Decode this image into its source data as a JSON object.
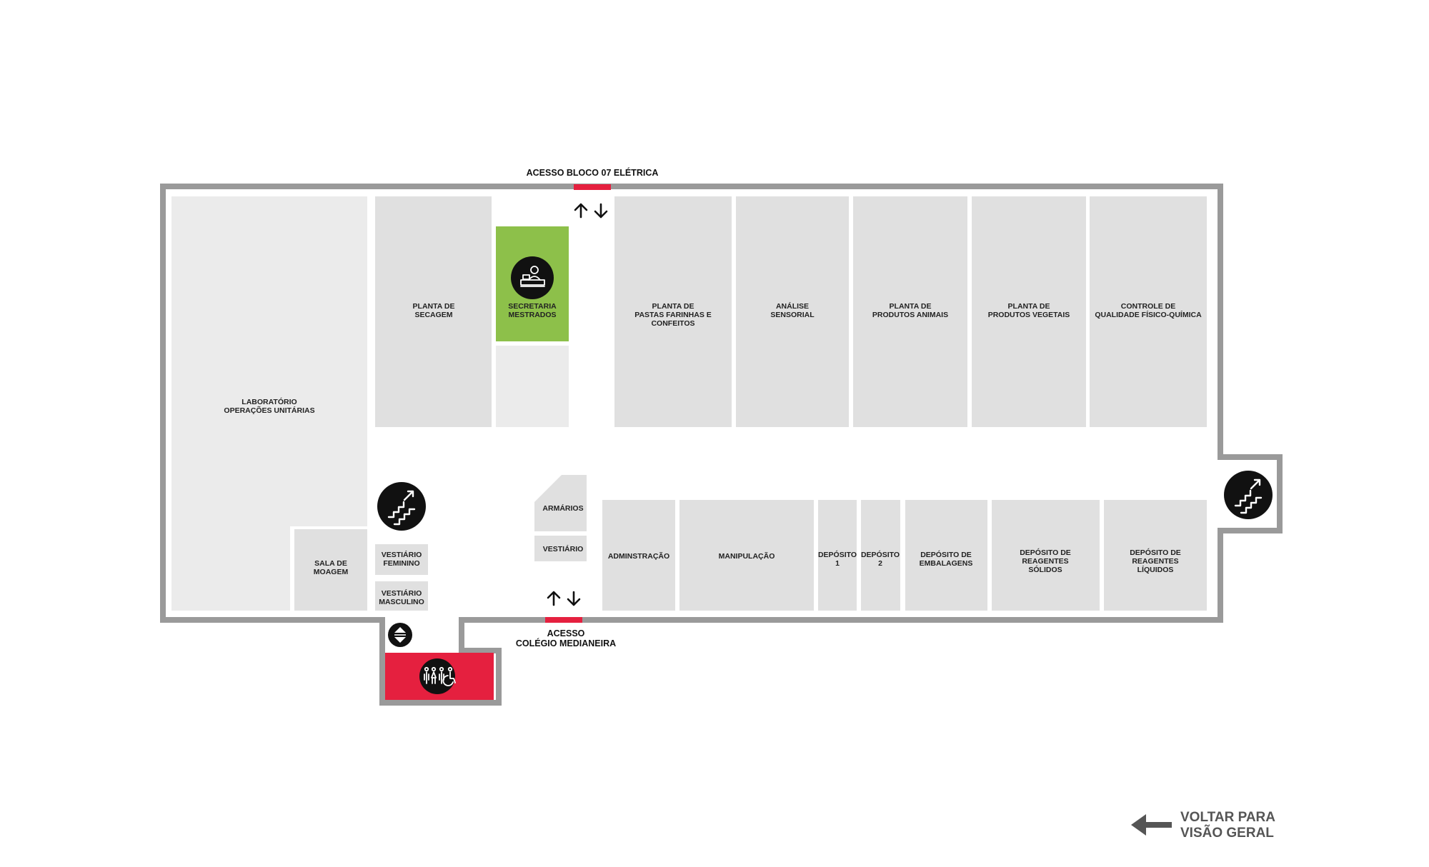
{
  "access": {
    "top_label": "ACESSO BLOCO 07 ELÉTRICA",
    "bottom_label_line1": "ACESSO",
    "bottom_label_line2": "COLÉGIO MEDIANEIRA"
  },
  "rooms": {
    "lab_line1": "LABORATÓRIO",
    "lab_line2": "OPERAÇÕES UNITÁRIAS",
    "secagem_line1": "PLANTA DE",
    "secagem_line2": "SECAGEM",
    "secretaria_line1": "SECRETARIA",
    "secretaria_line2": "MESTRADOS",
    "pastas_line1": "PLANTA DE",
    "pastas_line2": "PASTAS FARINHAS E",
    "pastas_line3": "CONFEITOS",
    "sensorial_line1": "ANÁLISE",
    "sensorial_line2": "SENSORIAL",
    "animais_line1": "PLANTA DE",
    "animais_line2": "PRODUTOS ANIMAIS",
    "vegetais_line1": "PLANTA DE",
    "vegetais_line2": "PRODUTOS VEGETAIS",
    "controle_line1": "CONTROLE DE",
    "controle_line2": "QUALIDADE FÍSICO-QUÍMICA",
    "moagem_line1": "SALA DE",
    "moagem_line2": "MOAGEM",
    "vest_fem_line1": "VESTIÁRIO",
    "vest_fem_line2": "FEMININO",
    "vest_masc_line1": "VESTIÁRIO",
    "vest_masc_line2": "MASCULINO",
    "armarios": "ARMÁRIOS",
    "vestiario": "VESTIÁRIO",
    "adminstracao": "ADMINSTRAÇÃO",
    "manipulacao": "MANIPULAÇÃO",
    "deposito1_line1": "DEPÓSITO",
    "deposito1_line2": "1",
    "deposito2_line1": "DEPÓSITO",
    "deposito2_line2": "2",
    "embalagens_line1": "DEPÓSITO DE",
    "embalagens_line2": "EMBALAGENS",
    "solidos_line1": "DEPÓSITO DE",
    "solidos_line2": "REAGENTES",
    "solidos_line3": "SÓLIDOS",
    "liquidos_line1": "DEPÓSITO DE",
    "liquidos_line2": "REAGENTES",
    "liquidos_line3": "LÍQUIDOS"
  },
  "nav": {
    "back_line1": "VOLTAR PARA",
    "back_line2": "VISÃO GERAL"
  },
  "icons": [
    "reception-desk-icon",
    "stairs-icon",
    "elevator-icon",
    "restroom-icon",
    "up-down-arrows-icon",
    "back-arrow-icon"
  ],
  "colors": {
    "wall": "#9a9a9a",
    "room": "#e0e0e0",
    "secretaria": "#8dc04a",
    "restroom": "#e5203f",
    "access_marker": "#e5203f",
    "icon_bg": "#111111"
  }
}
